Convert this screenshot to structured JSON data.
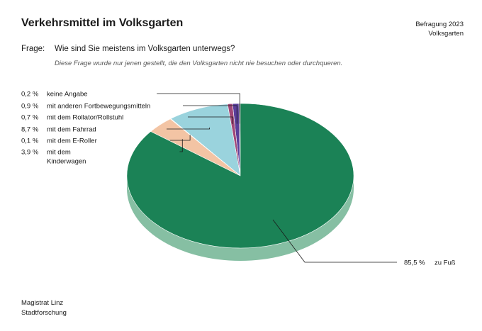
{
  "header": {
    "title": "Verkehrsmittel im Volksgarten",
    "meta_line1": "Befragung 2023",
    "meta_line2": "Volksgarten"
  },
  "question": {
    "label": "Frage:",
    "text": "Wie sind Sie meistens im Volksgarten unterwegs?",
    "note": "Diese Frage wurde nur jenen gestellt, die den Volksgarten nicht nie besuchen oder durchqueren."
  },
  "footer": {
    "line1": "Magistrat Linz",
    "line2": "Stadtforschung"
  },
  "chart_data": {
    "type": "pie",
    "title": "Verkehrsmittel im Volksgarten",
    "slices": [
      {
        "label": "keine Angabe",
        "value": 0.2,
        "display": "0,2 %",
        "color": "#1b1b3a"
      },
      {
        "label": "mit anderen Fortbewegungsmitteln",
        "value": 0.9,
        "display": "0,9 %",
        "color": "#5a3f9a"
      },
      {
        "label": "mit dem Rollator/Rollstuhl",
        "value": 0.7,
        "display": "0,7 %",
        "color": "#a04878"
      },
      {
        "label": "mit dem Fahrrad",
        "value": 8.7,
        "display": "8,7 %",
        "color": "#9ad3dd"
      },
      {
        "label": "mit dem E-Roller",
        "value": 0.1,
        "display": "0,1 %",
        "color": "#e8e0c8"
      },
      {
        "label": "mit dem Kinderwagen",
        "value": 3.9,
        "display": "3,9 %",
        "color": "#f3c4a4"
      },
      {
        "label": "zu Fuß",
        "value": 85.5,
        "display": "85,5 %",
        "color": "#1b8256"
      }
    ],
    "extra_colors": {
      "rollator_alt": "#e03c4a"
    }
  }
}
